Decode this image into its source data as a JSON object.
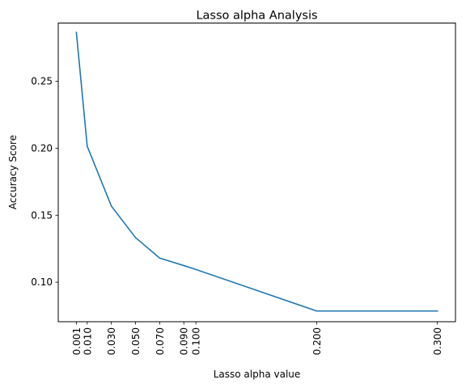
{
  "chart_data": {
    "type": "line",
    "title": "Lasso alpha Analysis",
    "xlabel": "Lasso alpha value",
    "ylabel": "Accuracy Score",
    "xlim": [
      -0.014,
      0.315
    ],
    "ylim": [
      0.0705,
      0.2935
    ],
    "x_ticks": [
      0.001,
      0.01,
      0.03,
      0.05,
      0.07,
      0.09,
      0.1,
      0.2,
      0.3
    ],
    "x_tick_labels": [
      "0.001",
      "0.010",
      "0.030",
      "0.050",
      "0.070",
      "0.090",
      "0.100",
      "0.200",
      "0.300"
    ],
    "y_ticks": [
      0.1,
      0.15,
      0.2,
      0.25
    ],
    "y_tick_labels": [
      "0.10",
      "0.15",
      "0.20",
      "0.25"
    ],
    "grid": false,
    "line_color": "#1f77b4",
    "series": [
      {
        "x": [
          0.001,
          0.01,
          0.03,
          0.05,
          0.07,
          0.09,
          0.1,
          0.2,
          0.3
        ],
        "y": [
          0.2865,
          0.2015,
          0.1568,
          0.1333,
          0.118,
          0.1124,
          0.1095,
          0.0785,
          0.0785
        ]
      }
    ]
  }
}
